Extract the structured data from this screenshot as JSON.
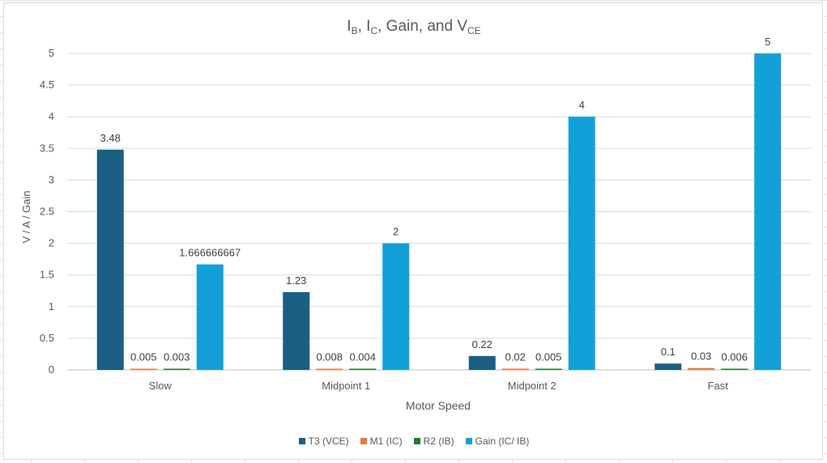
{
  "chart_data": {
    "type": "bar",
    "title": {
      "I_B": "I",
      "I_B_sub": "B",
      "I_C": "I",
      "I_C_sub": "C",
      "gain_and": ", Gain, and ",
      "V_CE": "V",
      "V_CE_sub": "CE",
      "sep": ", "
    },
    "xlabel": "Motor Speed",
    "ylabel": "V / A / Gain",
    "ylim": [
      0,
      5
    ],
    "yticks": [
      0,
      0.5,
      1,
      1.5,
      2,
      2.5,
      3,
      3.5,
      4,
      4.5,
      5
    ],
    "categories": [
      "Slow",
      "Midpoint 1",
      "Midpoint 2",
      "Fast"
    ],
    "grid": true,
    "legend_position": "bottom",
    "series": [
      {
        "name": "T3 (VCE)",
        "color": "#1b5e84",
        "values": [
          3.48,
          1.23,
          0.22,
          0.1
        ],
        "labels": [
          "3.48",
          "1.23",
          "0.22",
          "0.1"
        ]
      },
      {
        "name": "M1 (IC)",
        "color": "#e8783a",
        "values": [
          0.005,
          0.008,
          0.02,
          0.03
        ],
        "labels": [
          "0.005",
          "0.008",
          "0.02",
          "0.03"
        ]
      },
      {
        "name": "R2 (IB)",
        "color": "#1e7d32",
        "values": [
          0.003,
          0.004,
          0.005,
          0.006
        ],
        "labels": [
          "0.003",
          "0.004",
          "0.005",
          "0.006"
        ]
      },
      {
        "name": "Gain (IC/ IB)",
        "color": "#139fd8",
        "values": [
          1.666666667,
          2,
          4,
          5
        ],
        "labels": [
          "1.666666667",
          "2",
          "4",
          "5"
        ]
      }
    ]
  }
}
